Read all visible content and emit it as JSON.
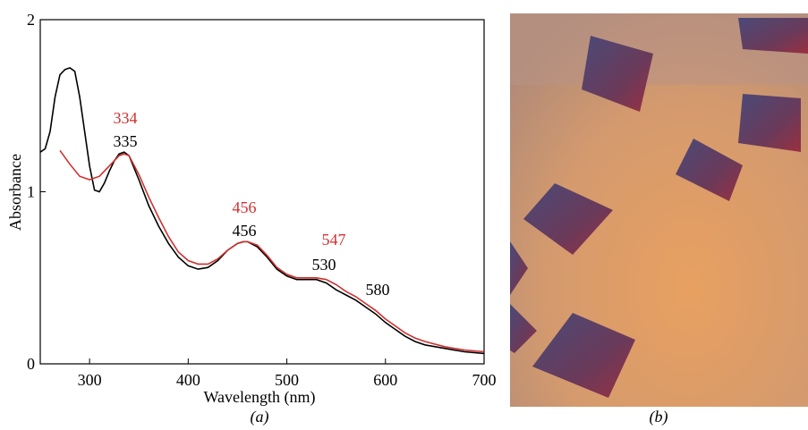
{
  "chart_data": {
    "type": "line",
    "xlabel": "Wavelength (nm)",
    "ylabel": "Absorbance",
    "xlim": [
      250,
      700
    ],
    "ylim": [
      0,
      2
    ],
    "xticks": [
      300,
      400,
      500,
      600,
      700
    ],
    "yticks": [
      0,
      1,
      2
    ],
    "series": [
      {
        "color": "#000000",
        "x": [
          250,
          255,
          260,
          265,
          270,
          275,
          280,
          285,
          290,
          295,
          300,
          305,
          310,
          315,
          320,
          325,
          330,
          335,
          340,
          350,
          360,
          370,
          380,
          390,
          400,
          410,
          420,
          430,
          440,
          450,
          456,
          460,
          470,
          480,
          490,
          500,
          510,
          520,
          530,
          540,
          550,
          560,
          570,
          580,
          590,
          600,
          610,
          620,
          630,
          640,
          660,
          680,
          700
        ],
        "values": [
          1.23,
          1.25,
          1.35,
          1.55,
          1.68,
          1.71,
          1.72,
          1.7,
          1.55,
          1.35,
          1.15,
          1.01,
          1.0,
          1.05,
          1.12,
          1.18,
          1.22,
          1.23,
          1.21,
          1.07,
          0.92,
          0.8,
          0.7,
          0.62,
          0.57,
          0.55,
          0.56,
          0.6,
          0.66,
          0.7,
          0.71,
          0.71,
          0.68,
          0.62,
          0.55,
          0.51,
          0.49,
          0.49,
          0.49,
          0.47,
          0.43,
          0.4,
          0.37,
          0.33,
          0.29,
          0.24,
          0.2,
          0.16,
          0.13,
          0.11,
          0.09,
          0.07,
          0.06
        ]
      },
      {
        "color": "#d03030",
        "x": [
          270,
          280,
          290,
          300,
          310,
          320,
          330,
          335,
          340,
          350,
          360,
          370,
          380,
          390,
          400,
          410,
          420,
          430,
          440,
          450,
          456,
          460,
          470,
          480,
          490,
          500,
          510,
          520,
          530,
          540,
          550,
          560,
          570,
          580,
          590,
          600,
          610,
          620,
          630,
          640,
          660,
          680,
          700
        ],
        "values": [
          1.24,
          1.16,
          1.09,
          1.07,
          1.09,
          1.15,
          1.21,
          1.22,
          1.21,
          1.1,
          0.97,
          0.85,
          0.74,
          0.65,
          0.6,
          0.58,
          0.58,
          0.61,
          0.66,
          0.7,
          0.71,
          0.71,
          0.69,
          0.63,
          0.56,
          0.52,
          0.5,
          0.5,
          0.5,
          0.49,
          0.46,
          0.42,
          0.39,
          0.35,
          0.31,
          0.26,
          0.22,
          0.18,
          0.15,
          0.13,
          0.1,
          0.08,
          0.07
        ]
      }
    ],
    "annotations": [
      {
        "text": "334",
        "color": "#d03030"
      },
      {
        "text": "335",
        "color": "#000000"
      },
      {
        "text": "456",
        "color": "#d03030"
      },
      {
        "text": "456",
        "color": "#000000"
      },
      {
        "text": "547",
        "color": "#d03030"
      },
      {
        "text": "530",
        "color": "#000000"
      },
      {
        "text": "580",
        "color": "#000000"
      }
    ]
  },
  "panels": {
    "a": "(a)",
    "b": "(b)"
  }
}
